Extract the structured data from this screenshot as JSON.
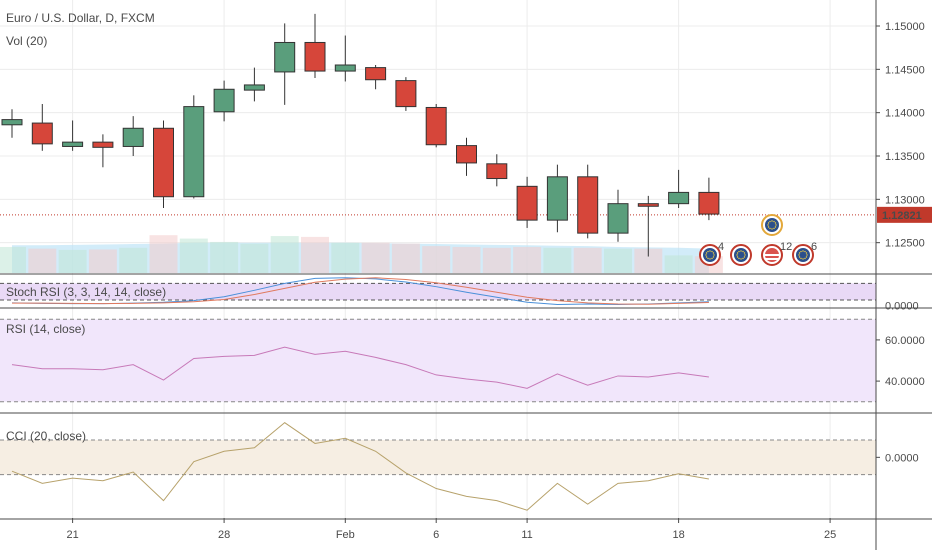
{
  "colors": {
    "up": "#5a9e7c",
    "down": "#d6463a",
    "grid": "#ececec",
    "price_line": "#c0392b",
    "volume": "#9fd4ee",
    "stoch_bg": "#e9d9f6",
    "rsi_bg": "#f1e6fb",
    "cci_bg": "#f6eee3"
  },
  "header": {
    "symbol_line": "Euro / U.S. Dollar, D, FXCM",
    "volume_label": "Vol (20)"
  },
  "current_price": {
    "value": 1.12821,
    "label": "1.12821"
  },
  "chart_data": [
    {
      "type": "candlestick",
      "title": "Euro / U.S. Dollar, D, FXCM",
      "x_tick_labels": [
        "21",
        "28",
        "Feb",
        "6",
        "11",
        "18",
        "25"
      ],
      "y_tick_labels": [
        "1.12500",
        "1.13000",
        "1.13500",
        "1.14000",
        "1.14500",
        "1.15000"
      ],
      "ylim": [
        1.1215,
        1.153
      ],
      "grid": true,
      "candles": [
        {
          "date": "2019-01-17",
          "open": 1.1386,
          "high": 1.1404,
          "low": 1.1371,
          "close": 1.1392
        },
        {
          "date": "2019-01-18",
          "open": 1.1388,
          "high": 1.141,
          "low": 1.1356,
          "close": 1.1364
        },
        {
          "date": "2019-01-21",
          "open": 1.1361,
          "high": 1.1391,
          "low": 1.1356,
          "close": 1.1366
        },
        {
          "date": "2019-01-22",
          "open": 1.1366,
          "high": 1.1375,
          "low": 1.1337,
          "close": 1.136
        },
        {
          "date": "2019-01-23",
          "open": 1.1361,
          "high": 1.1396,
          "low": 1.135,
          "close": 1.1382
        },
        {
          "date": "2019-01-24",
          "open": 1.1382,
          "high": 1.1391,
          "low": 1.129,
          "close": 1.1303
        },
        {
          "date": "2019-01-25",
          "open": 1.1303,
          "high": 1.142,
          "low": 1.1301,
          "close": 1.1407
        },
        {
          "date": "2019-01-28",
          "open": 1.1401,
          "high": 1.1437,
          "low": 1.139,
          "close": 1.1427
        },
        {
          "date": "2019-01-29",
          "open": 1.1426,
          "high": 1.1452,
          "low": 1.1413,
          "close": 1.1432
        },
        {
          "date": "2019-01-30",
          "open": 1.1447,
          "high": 1.1503,
          "low": 1.1409,
          "close": 1.1481
        },
        {
          "date": "2019-01-31",
          "open": 1.1481,
          "high": 1.1514,
          "low": 1.144,
          "close": 1.1448
        },
        {
          "date": "2019-02-01",
          "open": 1.1448,
          "high": 1.1489,
          "low": 1.1436,
          "close": 1.1455
        },
        {
          "date": "2019-02-04",
          "open": 1.1452,
          "high": 1.1455,
          "low": 1.1427,
          "close": 1.1438
        },
        {
          "date": "2019-02-05",
          "open": 1.1437,
          "high": 1.1441,
          "low": 1.1402,
          "close": 1.1407
        },
        {
          "date": "2019-02-06",
          "open": 1.1406,
          "high": 1.141,
          "low": 1.136,
          "close": 1.1363
        },
        {
          "date": "2019-02-07",
          "open": 1.1362,
          "high": 1.1371,
          "low": 1.1327,
          "close": 1.1342
        },
        {
          "date": "2019-02-08",
          "open": 1.1341,
          "high": 1.1352,
          "low": 1.1315,
          "close": 1.1324
        },
        {
          "date": "2019-02-11",
          "open": 1.1315,
          "high": 1.1326,
          "low": 1.1267,
          "close": 1.1276
        },
        {
          "date": "2019-02-12",
          "open": 1.1276,
          "high": 1.134,
          "low": 1.1262,
          "close": 1.1326
        },
        {
          "date": "2019-02-13",
          "open": 1.1326,
          "high": 1.134,
          "low": 1.1255,
          "close": 1.1261
        },
        {
          "date": "2019-02-14",
          "open": 1.1261,
          "high": 1.1311,
          "low": 1.1251,
          "close": 1.1295
        },
        {
          "date": "2019-02-15",
          "open": 1.1295,
          "high": 1.1304,
          "low": 1.1234,
          "close": 1.1292
        },
        {
          "date": "2019-02-18",
          "open": 1.1295,
          "high": 1.1334,
          "low": 1.129,
          "close": 1.1308
        },
        {
          "date": "2019-02-19",
          "open": 1.1308,
          "high": 1.1325,
          "low": 1.1276,
          "close": 1.1283
        }
      ],
      "volume": [
        0.62,
        0.58,
        0.55,
        0.56,
        0.6,
        0.9,
        0.82,
        0.74,
        0.7,
        0.88,
        0.86,
        0.72,
        0.72,
        0.7,
        0.64,
        0.62,
        0.6,
        0.62,
        0.6,
        0.6,
        0.58,
        0.58,
        0.42,
        0.4
      ],
      "volume_ma": [
        0.66,
        0.66,
        0.67,
        0.68,
        0.69,
        0.7,
        0.72,
        0.72,
        0.72,
        0.72,
        0.72,
        0.72,
        0.71,
        0.7,
        0.69,
        0.68,
        0.67,
        0.66,
        0.65,
        0.64,
        0.62,
        0.61,
        0.6,
        0.58
      ]
    },
    {
      "type": "line",
      "title": "Stoch RSI (3, 3, 14, 14, close)",
      "y_tick_labels": [
        "0.0000"
      ],
      "ylim": [
        -5,
        110
      ],
      "series": [
        {
          "values": [
            10,
            8,
            7,
            7,
            9,
            12,
            18,
            32,
            55,
            80,
            98,
            100,
            96,
            85,
            68,
            48,
            30,
            12,
            4,
            6,
            4,
            6,
            10,
            14
          ]
        },
        {
          "values": [
            9,
            9,
            8,
            7,
            8,
            10,
            14,
            22,
            40,
            62,
            84,
            95,
            100,
            94,
            82,
            66,
            48,
            30,
            18,
            10,
            6,
            5,
            8,
            11
          ]
        }
      ]
    },
    {
      "type": "line",
      "title": "RSI (14, close)",
      "y_tick_labels": [
        "40.0000",
        "60.0000"
      ],
      "ylim": [
        25,
        75
      ],
      "series": [
        {
          "values": [
            48,
            46,
            46,
            45.5,
            48,
            40.5,
            51,
            52,
            52.5,
            56.5,
            53,
            54.5,
            51.5,
            48,
            43,
            41,
            39.5,
            36.5,
            43.5,
            38,
            42.5,
            42,
            44,
            42
          ]
        }
      ]
    },
    {
      "type": "line",
      "title": "CCI (20, close)",
      "y_tick_labels": [
        "0.0000"
      ],
      "ylim": [
        -350,
        250
      ],
      "series": [
        {
          "values": [
            -80,
            -150,
            -120,
            -135,
            -85,
            -250,
            -25,
            35,
            55,
            200,
            80,
            110,
            35,
            -90,
            -180,
            -225,
            -250,
            -305,
            -150,
            -270,
            -150,
            -135,
            -95,
            -125
          ]
        }
      ]
    }
  ],
  "events": [
    {
      "icon": "eu-flag-icon",
      "count": "4"
    },
    {
      "icon": "eu-flag-icon",
      "count": ""
    },
    {
      "icon": "eu-flag-icon",
      "count": ""
    },
    {
      "icon": "us-flag-icon",
      "count": "12"
    },
    {
      "icon": "eu-flag-icon",
      "count": "6"
    }
  ]
}
